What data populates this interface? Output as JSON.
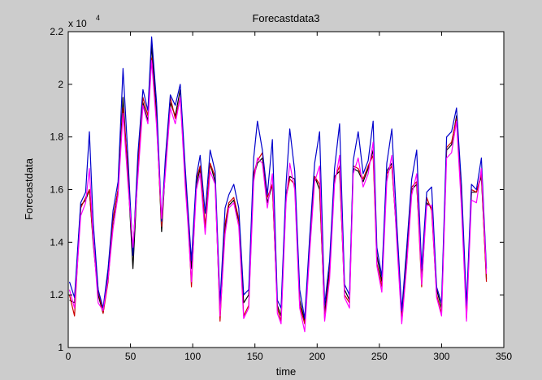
{
  "chart_data": {
    "type": "line",
    "title": "Forecastdata3",
    "xlabel": "time",
    "ylabel": "Forecastdata",
    "xlim": [
      0,
      350
    ],
    "ylim": [
      10000,
      22000
    ],
    "y_exponent_label": "x 10",
    "y_exponent_power": "4",
    "xticks": [
      0,
      50,
      100,
      150,
      200,
      250,
      300,
      350
    ],
    "xtick_labels": [
      "0",
      "50",
      "100",
      "150",
      "200",
      "250",
      "300",
      "350"
    ],
    "yticks": [
      10000,
      12000,
      14000,
      16000,
      18000,
      20000,
      22000
    ],
    "ytick_labels": [
      "1",
      "1.2",
      "1.4",
      "1.6",
      "1.8",
      "2",
      "2.2"
    ],
    "grid": false,
    "legend": "none",
    "x": [
      1,
      5,
      10,
      14,
      17,
      20,
      24,
      28,
      32,
      36,
      40,
      44,
      48,
      52,
      56,
      60,
      64,
      67,
      71,
      75,
      78,
      82,
      86,
      90,
      94,
      96,
      99,
      103,
      106,
      110,
      114,
      118,
      122,
      126,
      129,
      133,
      137,
      141,
      145,
      149,
      152,
      156,
      160,
      164,
      168,
      171,
      175,
      178,
      182,
      186,
      190,
      194,
      198,
      202,
      206,
      210,
      214,
      218,
      222,
      226,
      229,
      233,
      237,
      241,
      245,
      248,
      252,
      256,
      260,
      264,
      268,
      272,
      276,
      280,
      284,
      288,
      292,
      296,
      300,
      304,
      308,
      312,
      316,
      320,
      324,
      328,
      332,
      336
    ],
    "series": [
      {
        "color": "#000000",
        "values": [
          11800,
          11700,
          15400,
          15600,
          16000,
          14000,
          12000,
          11300,
          12800,
          14800,
          16000,
          19500,
          16500,
          13000,
          16800,
          19300,
          18600,
          21500,
          18800,
          14400,
          16800,
          19300,
          18800,
          19800,
          16500,
          15000,
          13000,
          16200,
          16800,
          14500,
          17000,
          16300,
          11300,
          14500,
          15400,
          15600,
          14800,
          11700,
          12000,
          16500,
          17000,
          17200,
          15500,
          16200,
          11600,
          11200,
          15800,
          16500,
          16400,
          11800,
          11000,
          13800,
          16500,
          16000,
          11300,
          13000,
          16500,
          16700,
          12200,
          11800,
          16800,
          16700,
          16300,
          16800,
          17500,
          13500,
          12500,
          16700,
          17000,
          14200,
          11100,
          13500,
          16000,
          16200,
          12800,
          15500,
          15300,
          12200,
          11500,
          17500,
          17700,
          18800,
          15500,
          11400,
          15900,
          15900,
          16500,
          12600
        ]
      },
      {
        "color": "#cc0000",
        "values": [
          12000,
          11200,
          15300,
          15700,
          16000,
          14100,
          12200,
          11300,
          12500,
          14900,
          16000,
          19100,
          16800,
          13600,
          17000,
          19500,
          18800,
          21000,
          18600,
          14600,
          17000,
          19500,
          18700,
          19500,
          16400,
          15100,
          12300,
          16400,
          16900,
          14600,
          17000,
          16500,
          11000,
          14700,
          15500,
          15700,
          14900,
          11200,
          11600,
          16600,
          17100,
          17400,
          15700,
          16200,
          11500,
          11000,
          15700,
          16400,
          16200,
          11600,
          10900,
          13900,
          16500,
          16200,
          11100,
          12800,
          16400,
          16900,
          12000,
          11700,
          16900,
          16800,
          16400,
          16900,
          17300,
          13200,
          12300,
          16600,
          16900,
          14300,
          11000,
          13200,
          16100,
          16300,
          12300,
          15700,
          15200,
          12000,
          11300,
          17600,
          17800,
          18700,
          15600,
          11100,
          16000,
          15900,
          16600,
          12500
        ]
      },
      {
        "color": "#0000cc",
        "values": [
          12500,
          11900,
          15500,
          15900,
          18200,
          14800,
          12200,
          11500,
          13000,
          15200,
          16300,
          20600,
          17200,
          13500,
          17400,
          19800,
          19000,
          21800,
          19300,
          14800,
          17200,
          19600,
          19200,
          20000,
          16800,
          15400,
          13300,
          16500,
          17300,
          15100,
          17500,
          16700,
          11700,
          15300,
          15800,
          16200,
          15300,
          12000,
          12200,
          17200,
          18600,
          17500,
          15800,
          17900,
          11800,
          11500,
          16200,
          18300,
          16700,
          12200,
          11100,
          14200,
          17000,
          18200,
          11600,
          13300,
          16800,
          18500,
          12400,
          12000,
          17100,
          18200,
          16600,
          17100,
          18600,
          13800,
          12700,
          17000,
          18300,
          14700,
          11400,
          13800,
          16400,
          17500,
          13000,
          15900,
          16100,
          12300,
          11700,
          18000,
          18200,
          19100,
          16200,
          11600,
          16200,
          16000,
          17200,
          13000
        ]
      },
      {
        "color": "#ff00ff",
        "values": [
          12200,
          11500,
          15000,
          15500,
          16800,
          14200,
          11700,
          11400,
          12600,
          14500,
          15800,
          18900,
          16200,
          13800,
          16500,
          19200,
          18500,
          20900,
          18400,
          14900,
          16600,
          19100,
          18500,
          19500,
          16100,
          14800,
          12500,
          16000,
          16600,
          14300,
          16700,
          16200,
          11200,
          14300,
          15300,
          15500,
          14600,
          11100,
          11500,
          16300,
          17200,
          17000,
          15300,
          16600,
          11300,
          10900,
          15500,
          17000,
          16000,
          11500,
          10600,
          13600,
          16300,
          16900,
          11000,
          12600,
          16200,
          17300,
          11900,
          11500,
          16600,
          17200,
          16100,
          16600,
          17800,
          13100,
          12100,
          16300,
          17300,
          14000,
          10900,
          13100,
          15800,
          16600,
          12400,
          15400,
          15400,
          11900,
          11200,
          17200,
          17400,
          18600,
          15300,
          11000,
          15600,
          15500,
          16800,
          12800
        ]
      }
    ]
  }
}
